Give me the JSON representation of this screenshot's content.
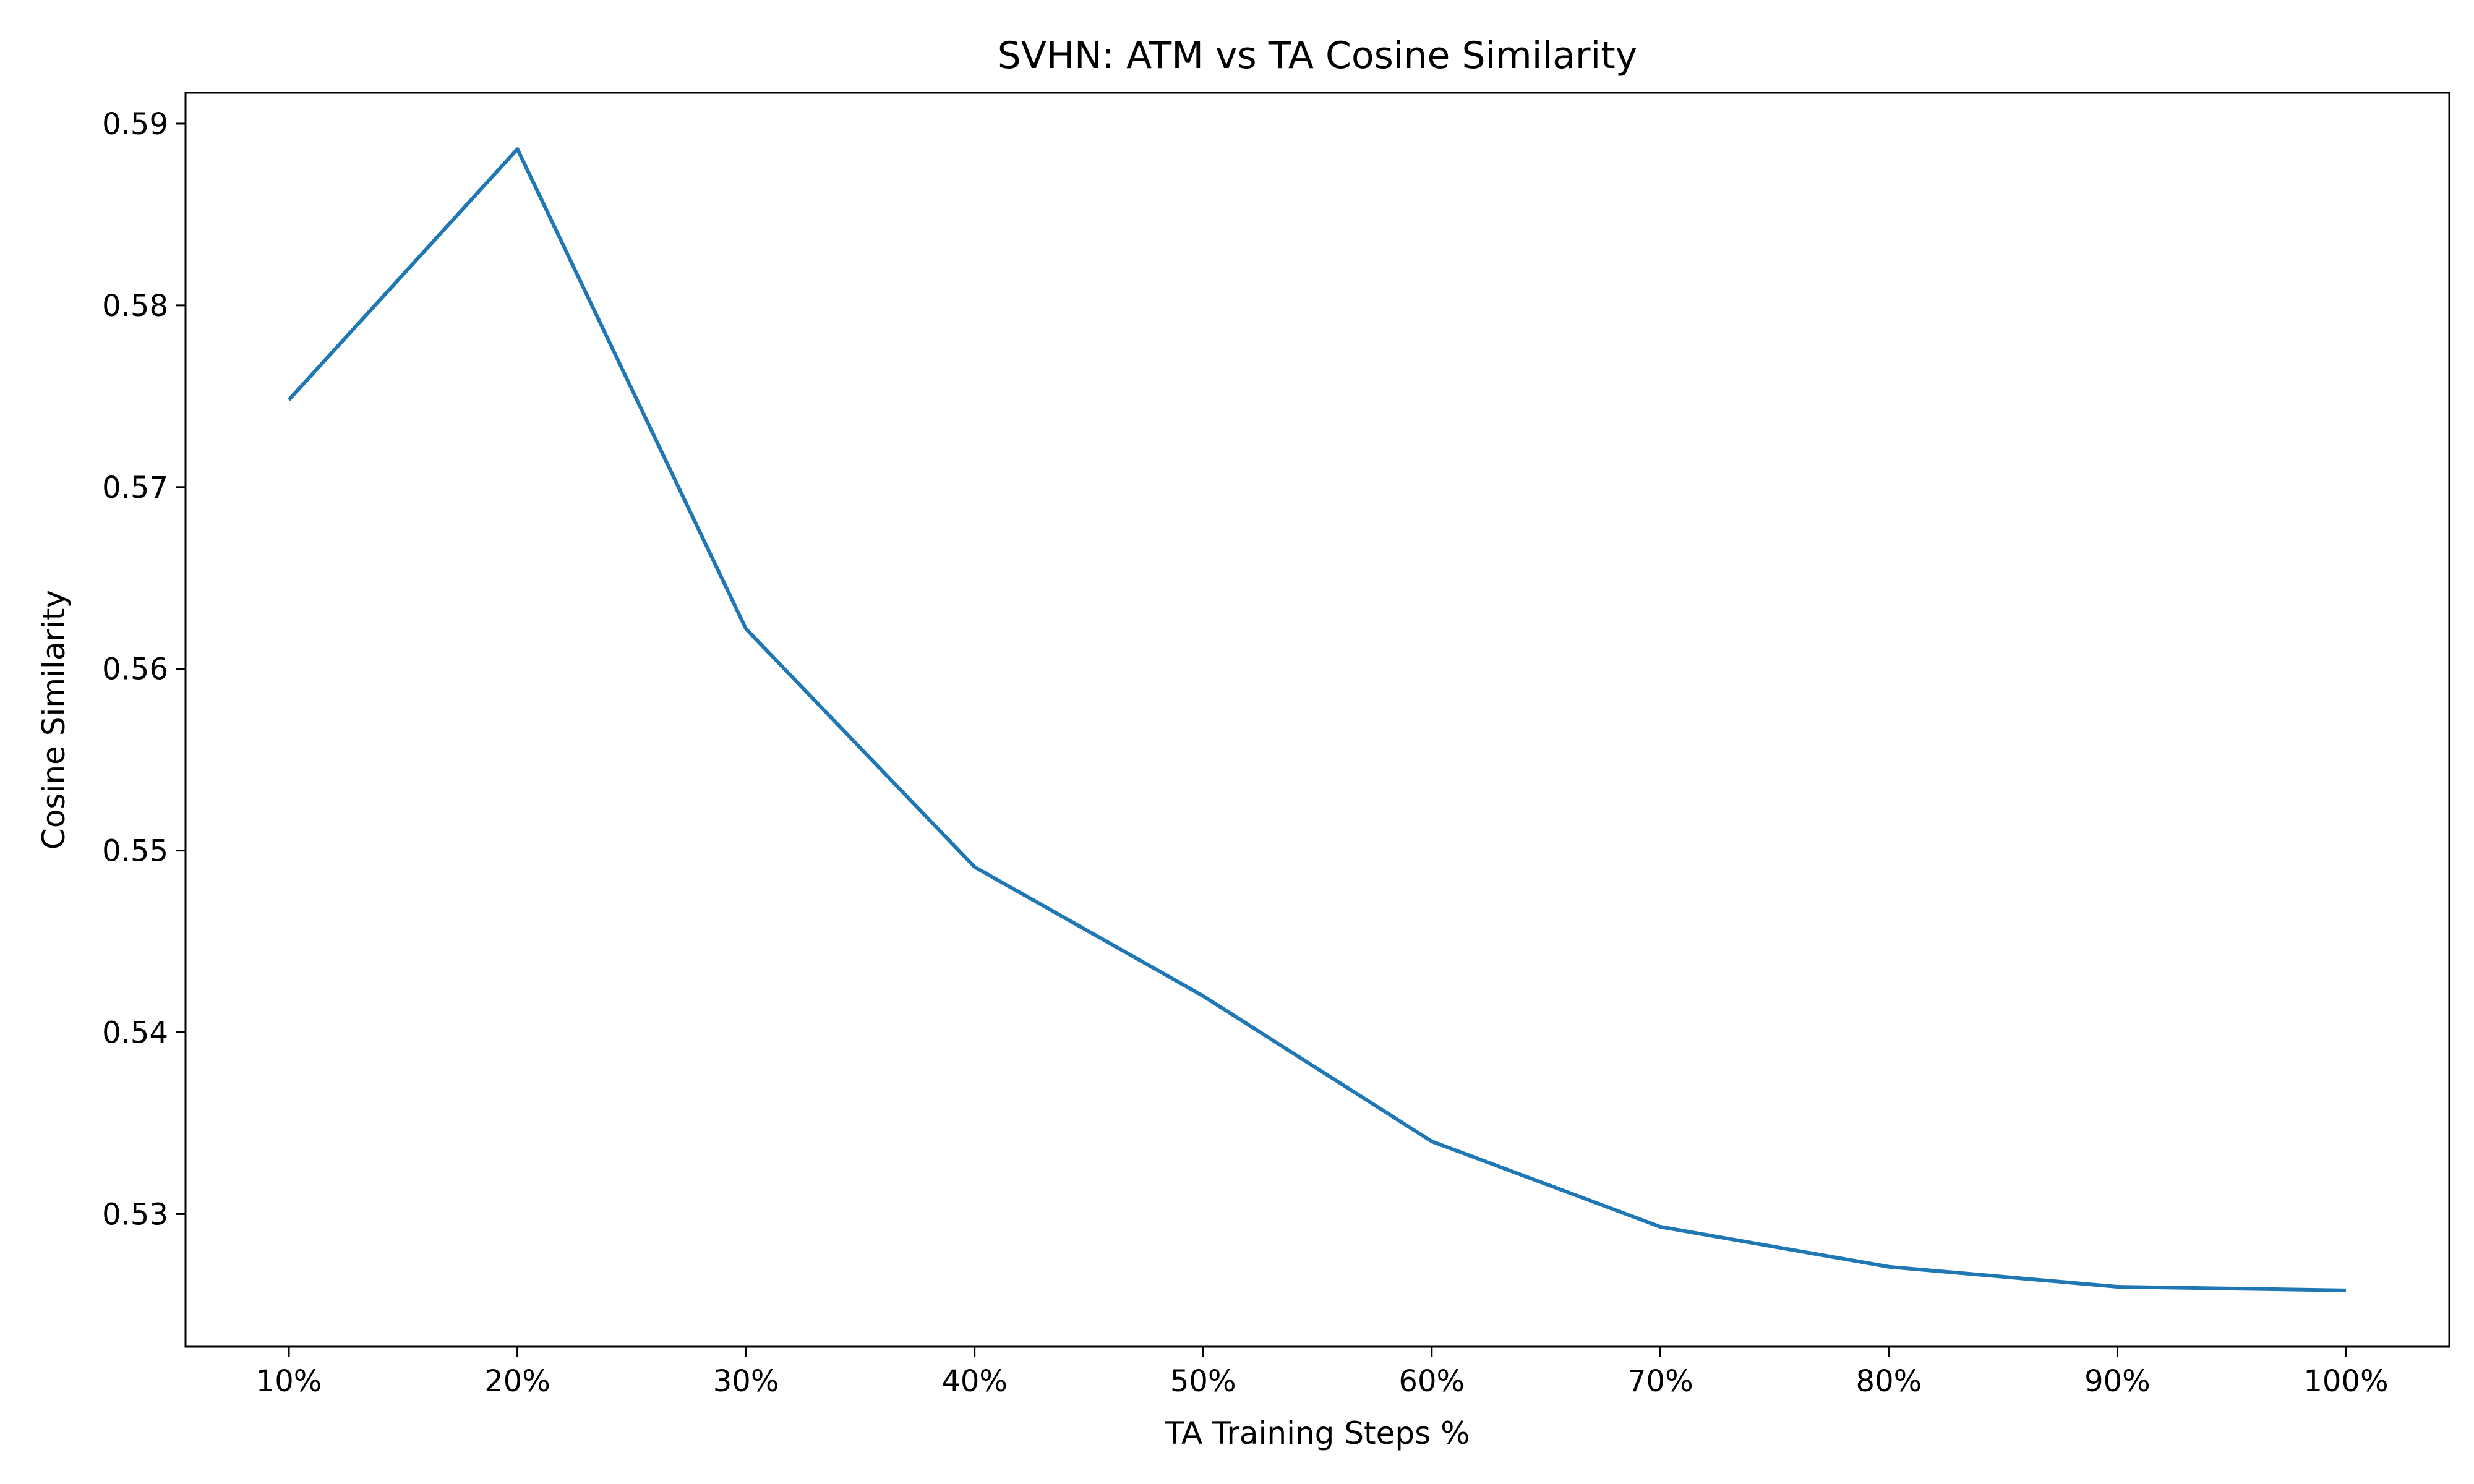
{
  "chart_data": {
    "type": "line",
    "title": "SVHN: ATM vs TA Cosine Similarity",
    "xlabel": "TA Training Steps %",
    "ylabel": "Cosine Similarity",
    "categories": [
      "10%",
      "20%",
      "30%",
      "40%",
      "50%",
      "60%",
      "70%",
      "80%",
      "90%",
      "100%"
    ],
    "series": [
      {
        "values": [
          0.5748,
          0.5886,
          0.5622,
          0.5491,
          0.542,
          0.534,
          0.5293,
          0.5271,
          0.526,
          0.5258
        ]
      }
    ],
    "yticks": [
      0.53,
      0.54,
      0.55,
      0.56,
      0.57,
      0.58,
      0.59
    ],
    "ylim": [
      0.5227,
      0.5917
    ],
    "grid": false,
    "color": "#1f77b4"
  }
}
